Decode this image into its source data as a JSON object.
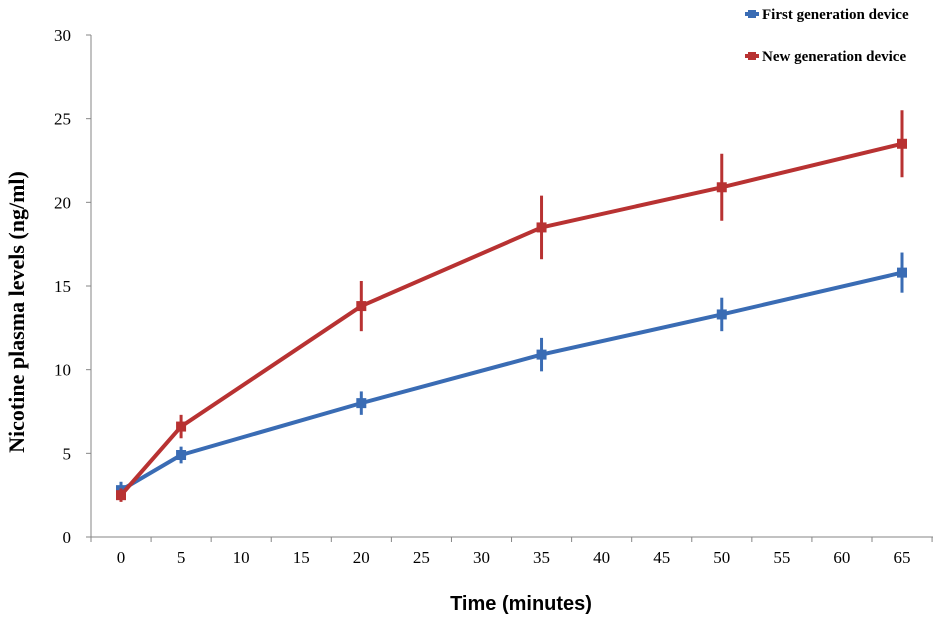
{
  "chart_data": {
    "type": "line",
    "xlabel": "Time (minutes)",
    "ylabel": "Nicotine plasma levels (ng/ml)",
    "xlim": [
      0,
      65
    ],
    "ylim": [
      0,
      30
    ],
    "x_ticks": [
      0,
      5,
      10,
      15,
      20,
      25,
      30,
      35,
      40,
      45,
      50,
      55,
      60,
      65
    ],
    "y_ticks": [
      0,
      5,
      10,
      15,
      20,
      25,
      30
    ],
    "grid": false,
    "legend_position": "top-right",
    "series": [
      {
        "name": "First generation device",
        "color": "#3a6cb4",
        "x": [
          0,
          5,
          20,
          35,
          50,
          65
        ],
        "values": [
          2.8,
          4.9,
          8.0,
          10.9,
          13.3,
          15.8
        ],
        "error": [
          0.5,
          0.5,
          0.7,
          1.0,
          1.0,
          1.2
        ]
      },
      {
        "name": "New generation device",
        "color": "#b83232",
        "x": [
          0,
          5,
          20,
          35,
          50,
          65
        ],
        "values": [
          2.5,
          6.6,
          13.8,
          18.5,
          20.9,
          23.5
        ],
        "error": [
          0.4,
          0.7,
          1.5,
          1.9,
          2.0,
          2.0
        ]
      }
    ]
  }
}
